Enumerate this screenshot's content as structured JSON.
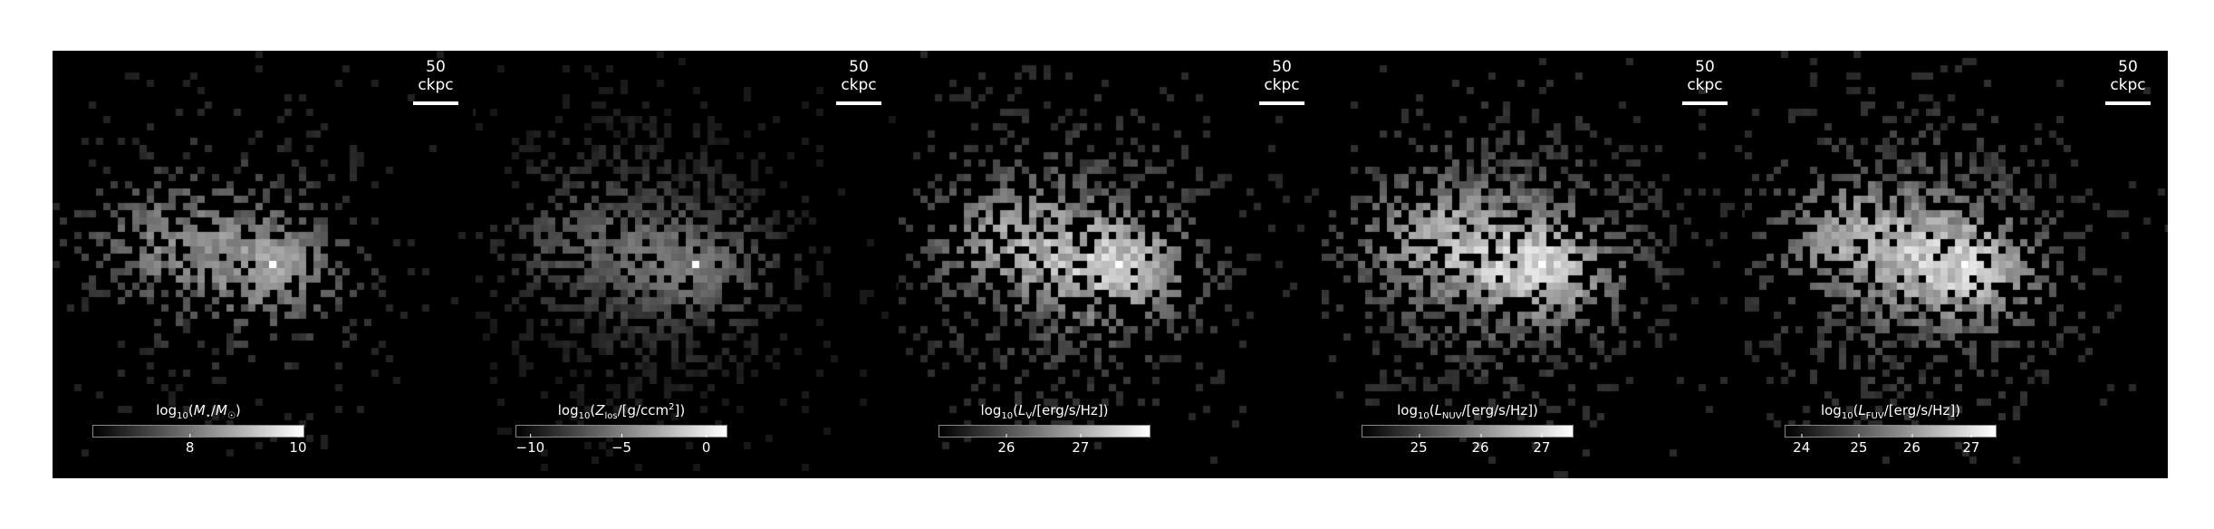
{
  "scalebar_text": "50 ckpc",
  "panels": [
    {
      "label_html": "log<sub>10</sub>(<i>M</i><sub>⋆</sub>/<i>M</i><sub>☉</sub>)",
      "ticks": [
        "8",
        "10"
      ],
      "tick_fracs": [
        0.46,
        0.97
      ],
      "seed": 11,
      "density": 0.45,
      "gain": 0.75
    },
    {
      "label_html": "log<sub>10</sub>(<i>Z</i><sub>los</sub>/[g/ccm<sup>2</sup>])",
      "ticks": [
        "−10",
        "−5",
        "0"
      ],
      "tick_fracs": [
        0.07,
        0.5,
        0.9
      ],
      "seed": 23,
      "density": 0.9,
      "gain": 0.55
    },
    {
      "label_html": "log<sub>10</sub>(<i>L</i><sub>V</sub>/[erg/s/Hz])",
      "ticks": [
        "26",
        "27"
      ],
      "tick_fracs": [
        0.32,
        0.67
      ],
      "seed": 37,
      "density": 0.85,
      "gain": 0.95
    },
    {
      "label_html": "log<sub>10</sub>(<i>L</i><sub>NUV</sub>/[erg/s/Hz])",
      "ticks": [
        "25",
        "26",
        "27"
      ],
      "tick_fracs": [
        0.27,
        0.56,
        0.85
      ],
      "seed": 41,
      "density": 0.95,
      "gain": 1.0
    },
    {
      "label_html": "log<sub>10</sub>(<i>L</i><sub>FUV</sub>/[erg/s/Hz])",
      "ticks": [
        "24",
        "25",
        "26",
        "27"
      ],
      "tick_fracs": [
        0.08,
        0.35,
        0.6,
        0.88
      ],
      "seed": 53,
      "density": 1.0,
      "gain": 1.0
    }
  ]
}
